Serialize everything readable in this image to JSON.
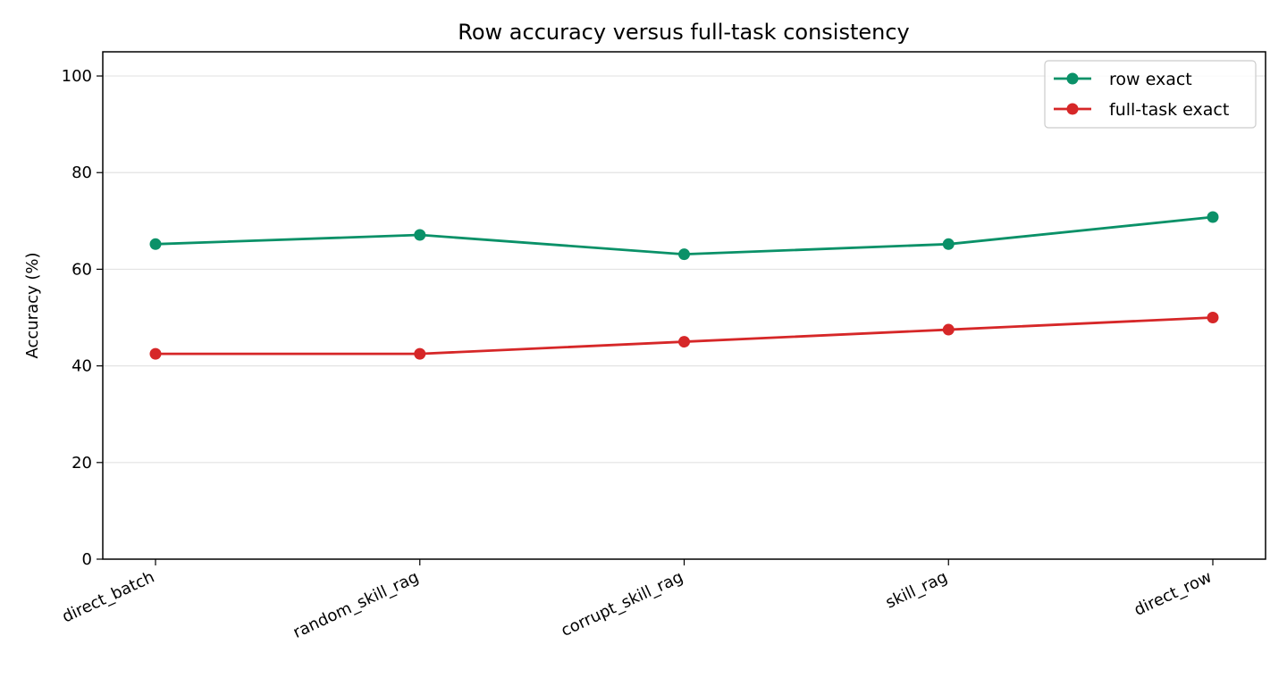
{
  "chart_data": {
    "type": "line",
    "title": "Row accuracy versus full-task consistency",
    "xlabel": "",
    "ylabel": "Accuracy (%)",
    "categories": [
      "direct_batch",
      "random_skill_rag",
      "corrupt_skill_rag",
      "skill_rag",
      "direct_row"
    ],
    "ylim": [
      0,
      105
    ],
    "yticks": [
      0,
      20,
      40,
      60,
      80,
      100
    ],
    "grid": "horizontal",
    "legend_position": "top-right",
    "series": [
      {
        "name": "row exact",
        "color": "#0a9168",
        "values": [
          65.2,
          67.1,
          63.1,
          65.2,
          70.8
        ]
      },
      {
        "name": "full-task exact",
        "color": "#d62728",
        "values": [
          42.5,
          42.5,
          45.0,
          47.5,
          50.0
        ]
      }
    ]
  }
}
